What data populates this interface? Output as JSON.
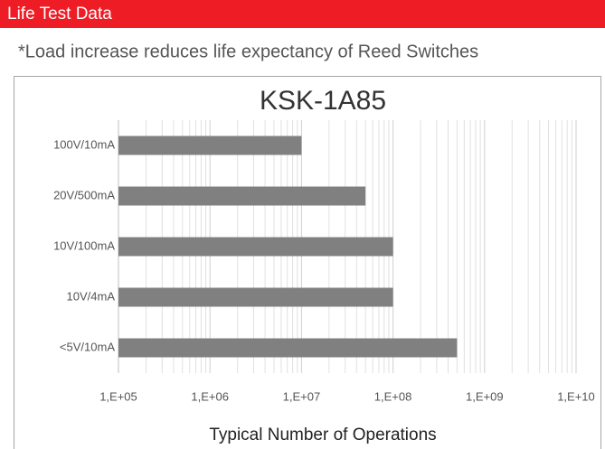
{
  "header": {
    "title": "Life Test Data",
    "subtitle": "*Load increase reduces life expectancy of Reed Switches"
  },
  "chart_data": {
    "type": "bar",
    "orientation": "horizontal",
    "title": "KSK-1A85",
    "x_label": "Typical Number of Operations",
    "categories": [
      "100V/10mA",
      "20V/500mA",
      "10V/100mA",
      "10V/4mA",
      "<5V/10mA"
    ],
    "values": [
      10000000,
      50000000,
      100000000,
      100000000,
      500000000
    ],
    "color": "#808080",
    "xscale": "log",
    "xlim": [
      100000,
      10000000000
    ],
    "xticks": [
      {
        "value": 100000,
        "label": "1,E+05"
      },
      {
        "value": 1000000,
        "label": "1,E+06"
      },
      {
        "value": 10000000,
        "label": "1,E+07"
      },
      {
        "value": 100000000,
        "label": "1,E+08"
      },
      {
        "value": 1000000000,
        "label": "1,E+09"
      },
      {
        "value": 10000000000,
        "label": "1,E+10"
      }
    ],
    "grid": true,
    "minor_grid": true
  }
}
